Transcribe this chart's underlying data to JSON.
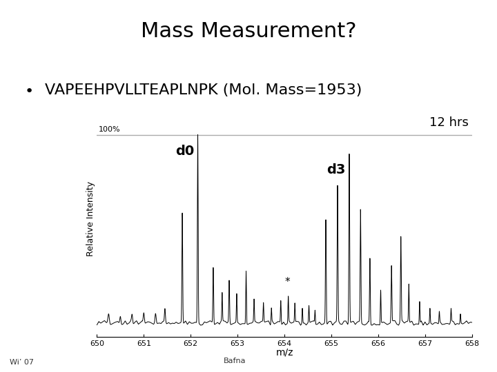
{
  "title": "Mass Measurement?",
  "title_bg_color": "#b8dfe4",
  "slide_bg_color": "#ffffff",
  "bullet_text": "VAPEEHPVLLTEAPLNPK (Mol. Mass=1953)",
  "wi07_text": "Wi’ 07",
  "bafna_text": "Bafna",
  "xlabel": "m/z",
  "ylabel": "Relative Intensity",
  "label_100": "100%",
  "label_12hrs": "12 hrs",
  "label_d0": "d0",
  "label_d3": "d3",
  "label_star": "*",
  "xmin": 650,
  "xmax": 658,
  "xticks": [
    650,
    651,
    652,
    653,
    654,
    655,
    656,
    657,
    658
  ],
  "plot_bg": "#ffffff",
  "line_color": "#000000",
  "hline_color": "#aaaaaa",
  "title_fontsize": 22,
  "bullet_fontsize": 16
}
